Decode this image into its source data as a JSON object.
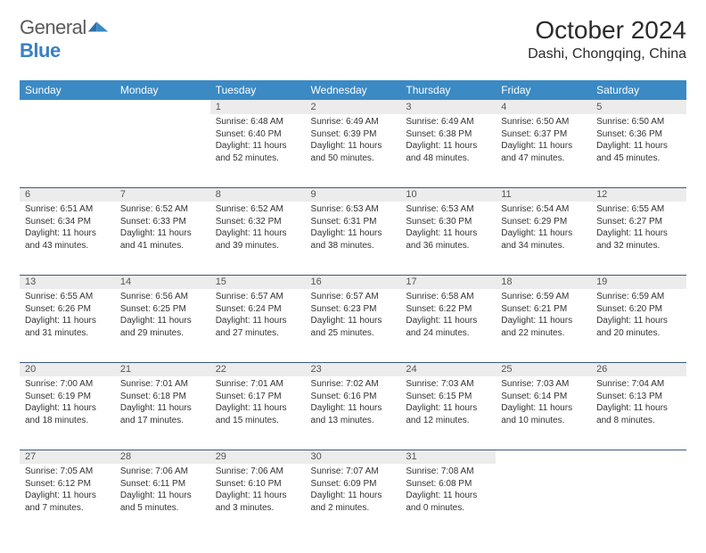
{
  "brand": {
    "part1": "General",
    "part2": "Blue"
  },
  "title": "October 2024",
  "location": "Dashi, Chongqing, China",
  "colors": {
    "header_bg": "#3b8ac4",
    "header_text": "#ffffff",
    "daynum_bg": "#ececec",
    "border": "#3b5a7a",
    "logo_gray": "#5a5a5a",
    "logo_blue": "#3b7fc4"
  },
  "day_names": [
    "Sunday",
    "Monday",
    "Tuesday",
    "Wednesday",
    "Thursday",
    "Friday",
    "Saturday"
  ],
  "weeks": [
    [
      null,
      null,
      {
        "n": "1",
        "sr": "Sunrise: 6:48 AM",
        "ss": "Sunset: 6:40 PM",
        "dl": "Daylight: 11 hours and 52 minutes."
      },
      {
        "n": "2",
        "sr": "Sunrise: 6:49 AM",
        "ss": "Sunset: 6:39 PM",
        "dl": "Daylight: 11 hours and 50 minutes."
      },
      {
        "n": "3",
        "sr": "Sunrise: 6:49 AM",
        "ss": "Sunset: 6:38 PM",
        "dl": "Daylight: 11 hours and 48 minutes."
      },
      {
        "n": "4",
        "sr": "Sunrise: 6:50 AM",
        "ss": "Sunset: 6:37 PM",
        "dl": "Daylight: 11 hours and 47 minutes."
      },
      {
        "n": "5",
        "sr": "Sunrise: 6:50 AM",
        "ss": "Sunset: 6:36 PM",
        "dl": "Daylight: 11 hours and 45 minutes."
      }
    ],
    [
      {
        "n": "6",
        "sr": "Sunrise: 6:51 AM",
        "ss": "Sunset: 6:34 PM",
        "dl": "Daylight: 11 hours and 43 minutes."
      },
      {
        "n": "7",
        "sr": "Sunrise: 6:52 AM",
        "ss": "Sunset: 6:33 PM",
        "dl": "Daylight: 11 hours and 41 minutes."
      },
      {
        "n": "8",
        "sr": "Sunrise: 6:52 AM",
        "ss": "Sunset: 6:32 PM",
        "dl": "Daylight: 11 hours and 39 minutes."
      },
      {
        "n": "9",
        "sr": "Sunrise: 6:53 AM",
        "ss": "Sunset: 6:31 PM",
        "dl": "Daylight: 11 hours and 38 minutes."
      },
      {
        "n": "10",
        "sr": "Sunrise: 6:53 AM",
        "ss": "Sunset: 6:30 PM",
        "dl": "Daylight: 11 hours and 36 minutes."
      },
      {
        "n": "11",
        "sr": "Sunrise: 6:54 AM",
        "ss": "Sunset: 6:29 PM",
        "dl": "Daylight: 11 hours and 34 minutes."
      },
      {
        "n": "12",
        "sr": "Sunrise: 6:55 AM",
        "ss": "Sunset: 6:27 PM",
        "dl": "Daylight: 11 hours and 32 minutes."
      }
    ],
    [
      {
        "n": "13",
        "sr": "Sunrise: 6:55 AM",
        "ss": "Sunset: 6:26 PM",
        "dl": "Daylight: 11 hours and 31 minutes."
      },
      {
        "n": "14",
        "sr": "Sunrise: 6:56 AM",
        "ss": "Sunset: 6:25 PM",
        "dl": "Daylight: 11 hours and 29 minutes."
      },
      {
        "n": "15",
        "sr": "Sunrise: 6:57 AM",
        "ss": "Sunset: 6:24 PM",
        "dl": "Daylight: 11 hours and 27 minutes."
      },
      {
        "n": "16",
        "sr": "Sunrise: 6:57 AM",
        "ss": "Sunset: 6:23 PM",
        "dl": "Daylight: 11 hours and 25 minutes."
      },
      {
        "n": "17",
        "sr": "Sunrise: 6:58 AM",
        "ss": "Sunset: 6:22 PM",
        "dl": "Daylight: 11 hours and 24 minutes."
      },
      {
        "n": "18",
        "sr": "Sunrise: 6:59 AM",
        "ss": "Sunset: 6:21 PM",
        "dl": "Daylight: 11 hours and 22 minutes."
      },
      {
        "n": "19",
        "sr": "Sunrise: 6:59 AM",
        "ss": "Sunset: 6:20 PM",
        "dl": "Daylight: 11 hours and 20 minutes."
      }
    ],
    [
      {
        "n": "20",
        "sr": "Sunrise: 7:00 AM",
        "ss": "Sunset: 6:19 PM",
        "dl": "Daylight: 11 hours and 18 minutes."
      },
      {
        "n": "21",
        "sr": "Sunrise: 7:01 AM",
        "ss": "Sunset: 6:18 PM",
        "dl": "Daylight: 11 hours and 17 minutes."
      },
      {
        "n": "22",
        "sr": "Sunrise: 7:01 AM",
        "ss": "Sunset: 6:17 PM",
        "dl": "Daylight: 11 hours and 15 minutes."
      },
      {
        "n": "23",
        "sr": "Sunrise: 7:02 AM",
        "ss": "Sunset: 6:16 PM",
        "dl": "Daylight: 11 hours and 13 minutes."
      },
      {
        "n": "24",
        "sr": "Sunrise: 7:03 AM",
        "ss": "Sunset: 6:15 PM",
        "dl": "Daylight: 11 hours and 12 minutes."
      },
      {
        "n": "25",
        "sr": "Sunrise: 7:03 AM",
        "ss": "Sunset: 6:14 PM",
        "dl": "Daylight: 11 hours and 10 minutes."
      },
      {
        "n": "26",
        "sr": "Sunrise: 7:04 AM",
        "ss": "Sunset: 6:13 PM",
        "dl": "Daylight: 11 hours and 8 minutes."
      }
    ],
    [
      {
        "n": "27",
        "sr": "Sunrise: 7:05 AM",
        "ss": "Sunset: 6:12 PM",
        "dl": "Daylight: 11 hours and 7 minutes."
      },
      {
        "n": "28",
        "sr": "Sunrise: 7:06 AM",
        "ss": "Sunset: 6:11 PM",
        "dl": "Daylight: 11 hours and 5 minutes."
      },
      {
        "n": "29",
        "sr": "Sunrise: 7:06 AM",
        "ss": "Sunset: 6:10 PM",
        "dl": "Daylight: 11 hours and 3 minutes."
      },
      {
        "n": "30",
        "sr": "Sunrise: 7:07 AM",
        "ss": "Sunset: 6:09 PM",
        "dl": "Daylight: 11 hours and 2 minutes."
      },
      {
        "n": "31",
        "sr": "Sunrise: 7:08 AM",
        "ss": "Sunset: 6:08 PM",
        "dl": "Daylight: 11 hours and 0 minutes."
      },
      null,
      null
    ]
  ]
}
